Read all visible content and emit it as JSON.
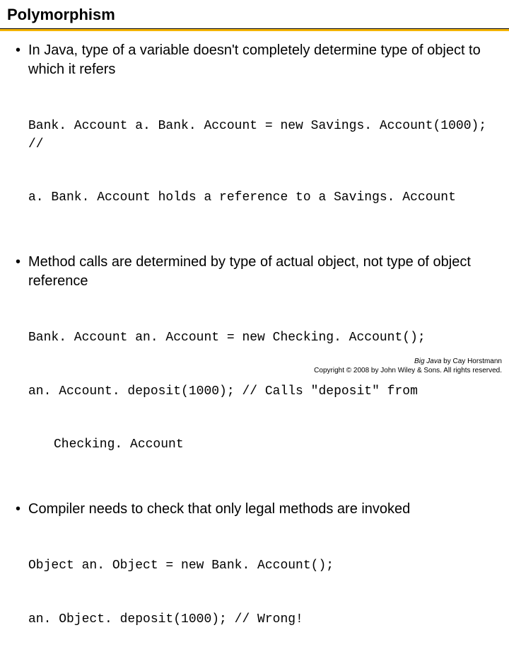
{
  "title": "Polymorphism",
  "bullets": {
    "b1": "In Java, type of a variable doesn't completely determine type of object to which it refers",
    "b2": "Method calls are determined by type of actual object, not type of object reference",
    "b3": "Compiler needs to check that only legal methods are invoked"
  },
  "code": {
    "c1a": "Bank. Account a. Bank. Account = new Savings. Account(1000); //",
    "c1b": "a. Bank. Account holds a reference to a Savings. Account",
    "c2a": "Bank. Account an. Account = new Checking. Account();",
    "c2b": "an. Account. deposit(1000); // Calls \"deposit\" from",
    "c2c": "Checking. Account",
    "c3a": "Object an. Object = new Bank. Account();",
    "c3b": "an. Object. deposit(1000); // Wrong!"
  },
  "footer": {
    "book": "Big Java",
    "author": " by Cay Horstmann",
    "copyright": "Copyright © 2008 by John Wiley & Sons. All rights reserved."
  },
  "colors": {
    "underline": "#f4b400",
    "text": "#000000",
    "background": "#ffffff"
  },
  "typography": {
    "title_fontsize": 22,
    "body_fontsize": 20,
    "code_fontsize": 18,
    "footer_fontsize": 10,
    "title_weight": "bold",
    "code_family": "Courier New"
  }
}
